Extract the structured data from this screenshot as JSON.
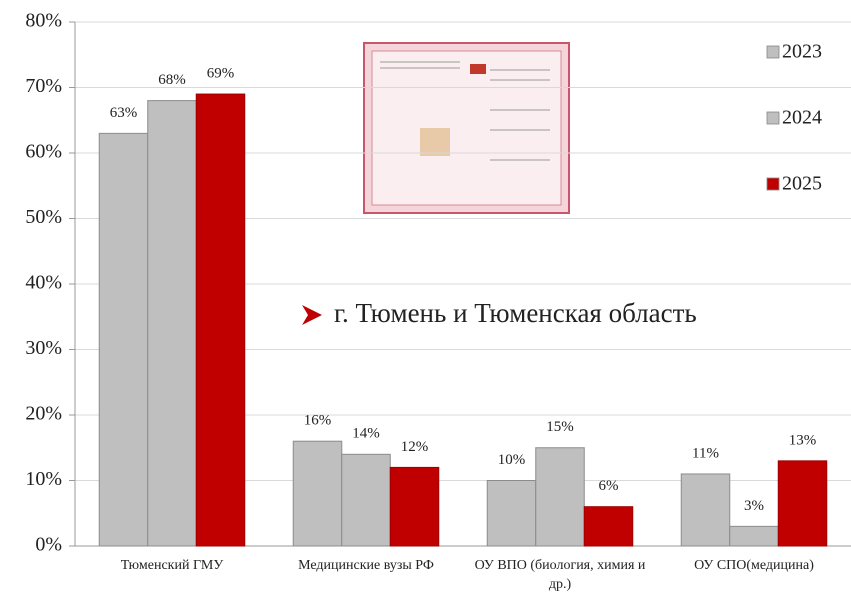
{
  "chart_data": {
    "type": "bar",
    "categories": [
      "Тюменский ГМУ",
      "Медицинские вузы РФ",
      "ОУ ВПО (биология, химия и др.)",
      "ОУ СПО(медицина)"
    ],
    "series": [
      {
        "name": "2023",
        "color": "#bfbfbf",
        "values": [
          63,
          16,
          10,
          11
        ],
        "value_labels": [
          "63%",
          "16%",
          "10%",
          "11%"
        ]
      },
      {
        "name": "2024",
        "color": "#bfbfbf",
        "values": [
          68,
          14,
          15,
          3
        ],
        "value_labels": [
          "68%",
          "14%",
          "15%",
          "3%"
        ]
      },
      {
        "name": "2025",
        "color": "#c00000",
        "values": [
          69,
          12,
          6,
          13
        ],
        "value_labels": [
          "69%",
          "12%",
          "6%",
          "13%"
        ]
      }
    ],
    "ylim": [
      0,
      80
    ],
    "yticks": [
      {
        "value": 0,
        "label": "0%"
      },
      {
        "value": 10,
        "label": "10%"
      },
      {
        "value": 20,
        "label": "20%"
      },
      {
        "value": 30,
        "label": "30%"
      },
      {
        "value": 40,
        "label": "40%"
      },
      {
        "value": 50,
        "label": "50%"
      },
      {
        "value": 60,
        "label": "60%"
      },
      {
        "value": 70,
        "label": "70%"
      },
      {
        "value": 80,
        "label": "80%"
      }
    ],
    "grid": true,
    "legend": "right",
    "annotation": "г. Тюмень и Тюменская область"
  }
}
